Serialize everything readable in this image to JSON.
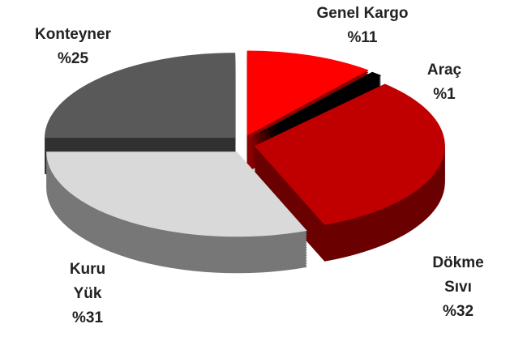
{
  "chart_data": {
    "type": "pie",
    "categories": [
      "Genel Kargo",
      "Araç",
      "Dökme Sıvı",
      "Kuru Yük",
      "Konteyner"
    ],
    "values": [
      11,
      1,
      32,
      31,
      25
    ],
    "value_labels": [
      "%11",
      "%1",
      "%32",
      "%31",
      "%25"
    ],
    "colors": [
      "#ff0000",
      "#000000",
      "#c00000",
      "#d9d9d9",
      "#595959"
    ]
  }
}
